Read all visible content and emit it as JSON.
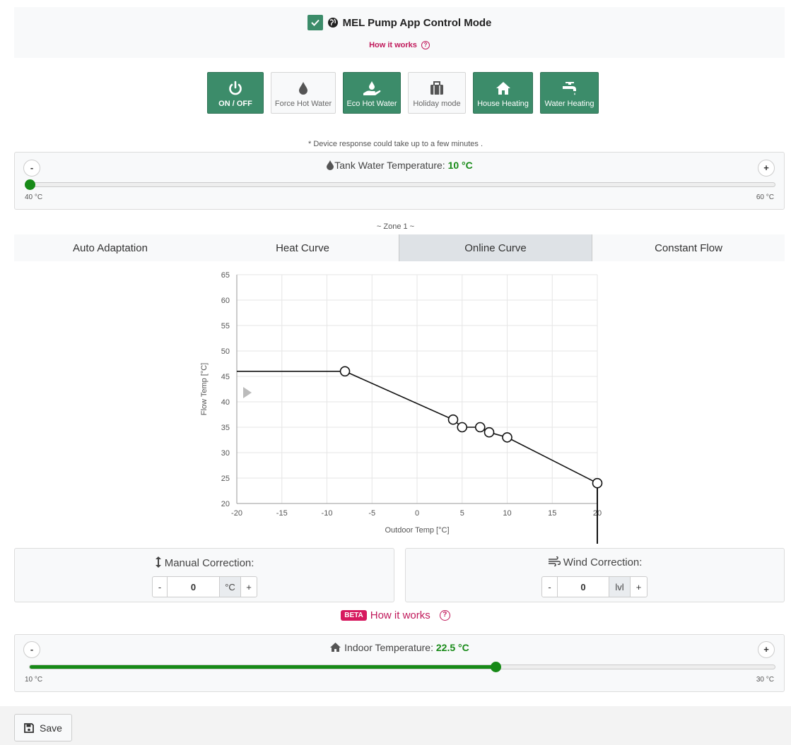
{
  "header": {
    "title": "MEL Pump App Control Mode",
    "how_it_works": "How it works"
  },
  "modes": [
    {
      "label": "ON / OFF",
      "icon": "power-icon",
      "active": true
    },
    {
      "label": "Force Hot Water",
      "icon": "droplet-icon",
      "active": false
    },
    {
      "label": "Eco Hot Water",
      "icon": "hand-droplet-icon",
      "active": true
    },
    {
      "label": "Holiday mode",
      "icon": "suitcase-icon",
      "active": false
    },
    {
      "label": "House Heating",
      "icon": "house-icon",
      "active": true
    },
    {
      "label": "Water Heating",
      "icon": "faucet-icon",
      "active": true
    }
  ],
  "note": "* Device response could take up to a few minutes .",
  "tank": {
    "label": "Tank Water Temperature:",
    "value": "10 °C",
    "min": "40 °C",
    "max": "60 °C",
    "minus": "-",
    "plus": "+",
    "fill_fraction": 0
  },
  "zone": {
    "title": "~ Zone 1 ~",
    "tabs": [
      "Auto Adaptation",
      "Heat Curve",
      "Online Curve",
      "Constant Flow"
    ],
    "active_tab": 2
  },
  "chart_data": {
    "type": "line",
    "xlabel": "Outdoor Temp [°C]",
    "ylabel": "Flow Temp [°C]",
    "xlim": [
      -20,
      20
    ],
    "ylim": [
      20,
      65
    ],
    "xticks": [
      -20,
      -15,
      -10,
      -5,
      0,
      5,
      10,
      15,
      20
    ],
    "yticks": [
      20,
      25,
      30,
      35,
      40,
      45,
      50,
      55,
      60,
      65
    ],
    "series": [
      {
        "x": [
          -20,
          -8,
          4,
          5,
          7,
          8,
          10,
          20
        ],
        "y": [
          46,
          46,
          36.5,
          35,
          35,
          34,
          33,
          24
        ]
      }
    ],
    "points": [
      {
        "x": -8,
        "y": 46
      },
      {
        "x": 4,
        "y": 36.5
      },
      {
        "x": 5,
        "y": 35
      },
      {
        "x": 7,
        "y": 35
      },
      {
        "x": 8,
        "y": 34
      },
      {
        "x": 10,
        "y": 33
      },
      {
        "x": 20,
        "y": 24
      }
    ],
    "current_outdoor_temp": 20,
    "grid": true,
    "colors": {
      "line": "#111111",
      "grid": "#e6e6e6"
    }
  },
  "manual": {
    "label": "Manual Correction:",
    "minus": "-",
    "value": "0",
    "unit": "°C",
    "plus": "+"
  },
  "wind": {
    "label": "Wind Correction:",
    "minus": "-",
    "value": "0",
    "unit": "lvl",
    "plus": "+"
  },
  "beta": {
    "badge": "BETA",
    "link": "How it works"
  },
  "indoor": {
    "label": "Indoor Temperature:",
    "value": "22.5 °C",
    "min": "10 °C",
    "max": "30 °C",
    "minus": "-",
    "plus": "+",
    "fill_fraction": 0.625
  },
  "footer": {
    "save": "Save"
  },
  "colors": {
    "accent": "#3c8c6a",
    "value_green": "#178a17",
    "link_pink": "#c0185a"
  }
}
